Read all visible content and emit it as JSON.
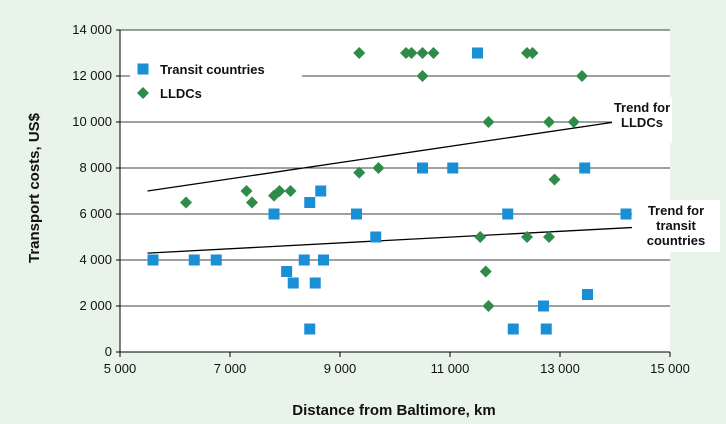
{
  "colors": {
    "background": "#e8f4ea",
    "plot": "#ffffff",
    "transit": "#1a8fd6",
    "lldc": "#2e8b4a",
    "line": "#000000"
  },
  "chart_data": {
    "type": "scatter",
    "xlabel": "Distance from Baltimore, km",
    "ylabel": "Transport costs, US$",
    "xlim": [
      5000,
      15000
    ],
    "ylim": [
      0,
      14000
    ],
    "x_ticks": [
      "5 000",
      "7 000",
      "9 000",
      "11 000",
      "13 000",
      "15 000"
    ],
    "y_ticks": [
      "0",
      "2 000",
      "4 000",
      "6 000",
      "8 000",
      "10 000",
      "12 000",
      "14 000"
    ],
    "grid": "horizontal",
    "legend_position": "top-left",
    "series": [
      {
        "name": "Transit countries",
        "marker": "square",
        "points": [
          [
            5600,
            4000
          ],
          [
            6350,
            4000
          ],
          [
            6750,
            4000
          ],
          [
            7800,
            6000
          ],
          [
            8030,
            3500
          ],
          [
            8150,
            3000
          ],
          [
            8350,
            4000
          ],
          [
            8450,
            6500
          ],
          [
            8450,
            1000
          ],
          [
            8550,
            3000
          ],
          [
            8650,
            7000
          ],
          [
            8700,
            4000
          ],
          [
            9300,
            6000
          ],
          [
            9650,
            5000
          ],
          [
            10500,
            8000
          ],
          [
            11050,
            8000
          ],
          [
            11500,
            13000
          ],
          [
            12050,
            6000
          ],
          [
            12150,
            1000
          ],
          [
            12700,
            2000
          ],
          [
            12750,
            1000
          ],
          [
            13450,
            8000
          ],
          [
            13500,
            2500
          ],
          [
            14200,
            6000
          ]
        ]
      },
      {
        "name": "LLDCs",
        "marker": "diamond",
        "points": [
          [
            6200,
            6500
          ],
          [
            7300,
            7000
          ],
          [
            7400,
            6500
          ],
          [
            7800,
            6800
          ],
          [
            7900,
            7000
          ],
          [
            8100,
            7000
          ],
          [
            9350,
            13000
          ],
          [
            9350,
            7800
          ],
          [
            9700,
            8000
          ],
          [
            10200,
            13000
          ],
          [
            10300,
            13000
          ],
          [
            10500,
            13000
          ],
          [
            10500,
            12000
          ],
          [
            10700,
            13000
          ],
          [
            11550,
            5000
          ],
          [
            11650,
            3500
          ],
          [
            11700,
            10000
          ],
          [
            11700,
            2000
          ],
          [
            12400,
            13000
          ],
          [
            12500,
            13000
          ],
          [
            12400,
            5000
          ],
          [
            12800,
            10000
          ],
          [
            12800,
            5000
          ],
          [
            12900,
            7500
          ],
          [
            13250,
            10000
          ],
          [
            13400,
            12000
          ]
        ]
      }
    ],
    "trend_lines": [
      {
        "label": [
          "Trend for",
          "LLDCs"
        ],
        "from": [
          5500,
          7000
        ],
        "to": [
          14000,
          10000
        ]
      },
      {
        "label": [
          "Trend for",
          "transit",
          "countries"
        ],
        "from": [
          5500,
          4300
        ],
        "to": [
          15000,
          5500
        ]
      }
    ]
  }
}
